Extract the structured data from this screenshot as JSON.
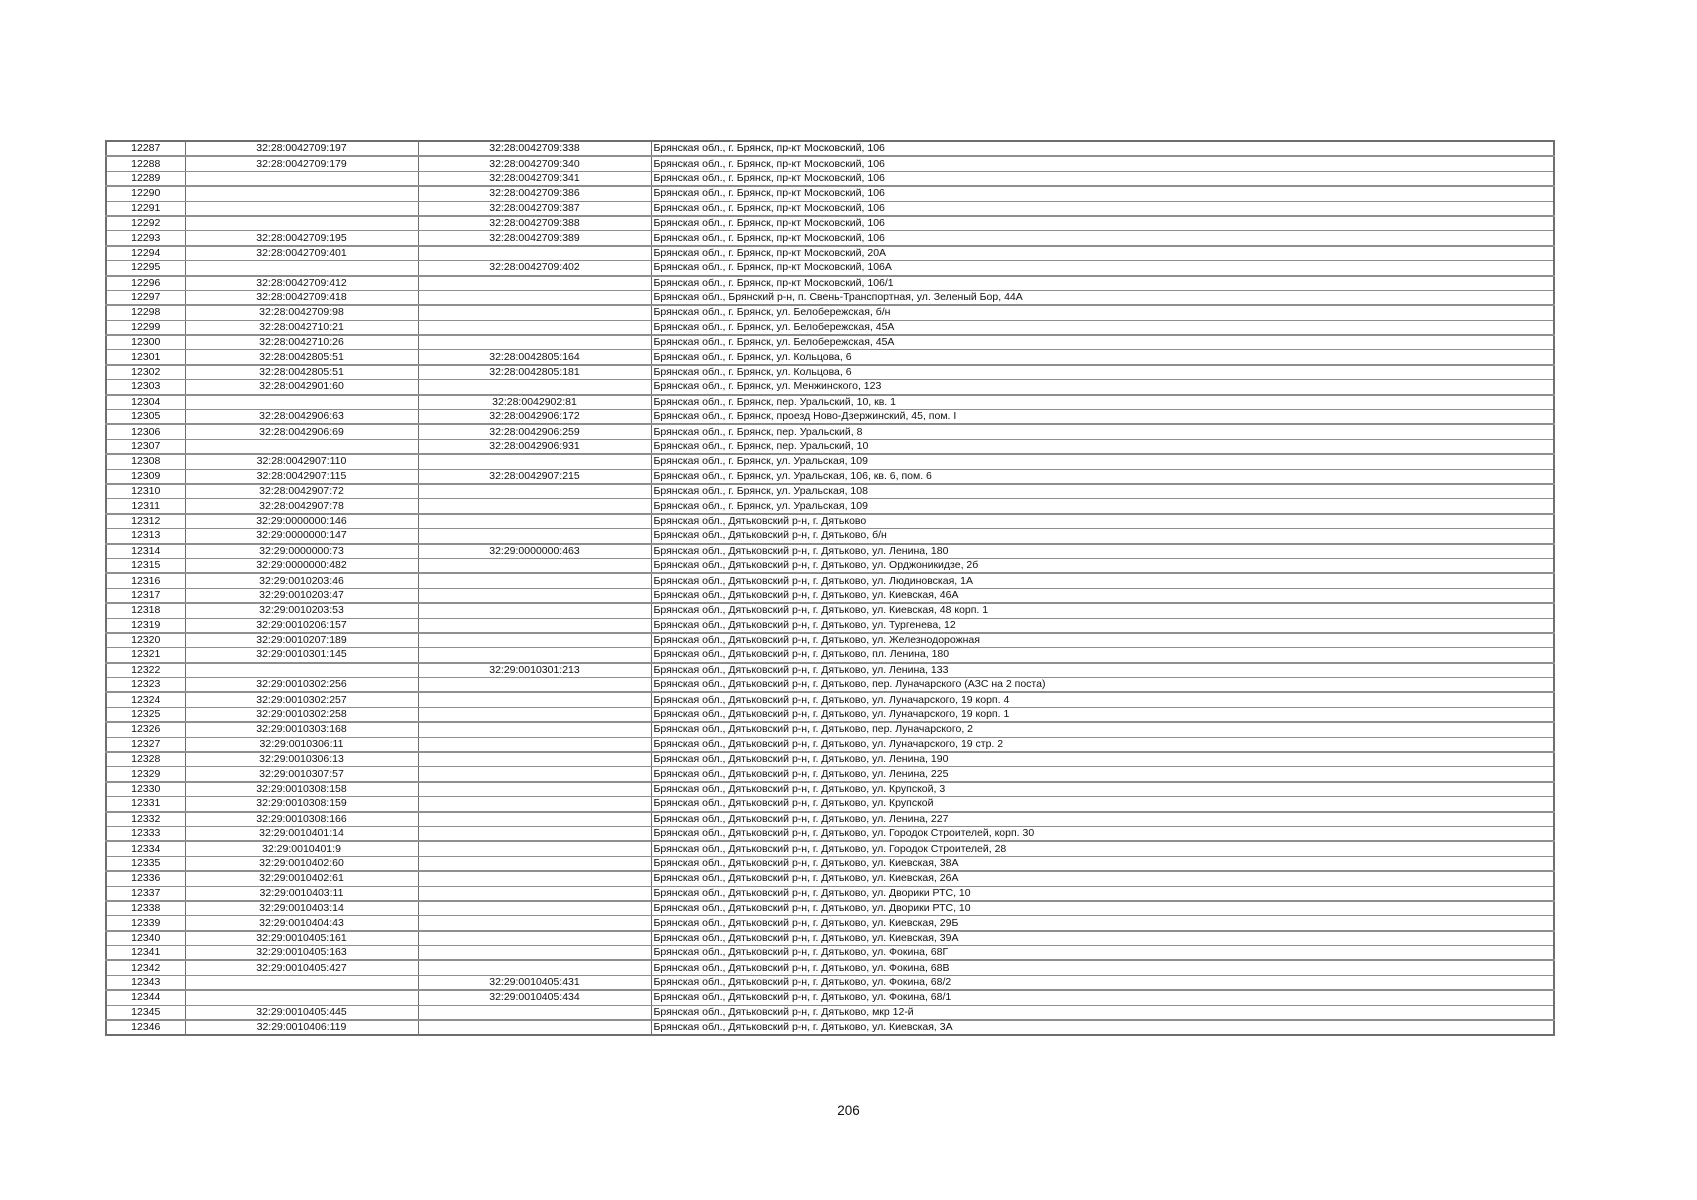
{
  "page": {
    "number": "206"
  },
  "colors": {
    "border": "#8f8f8f",
    "border_dark": "#6e6e6e",
    "text": "#111111",
    "background": "#ffffff"
  },
  "table": {
    "columns": [
      "row_number",
      "cadastral_number_1",
      "cadastral_number_2",
      "address"
    ],
    "rows": [
      [
        "12287",
        "32:28:0042709:197",
        "32:28:0042709:338",
        "Брянская обл., г. Брянск, пр-кт Московский, 106"
      ],
      [
        "12288",
        "32:28:0042709:179",
        "32:28:0042709:340",
        "Брянская обл., г. Брянск, пр-кт Московский, 106"
      ],
      [
        "12289",
        "",
        "32:28:0042709:341",
        "Брянская обл., г. Брянск, пр-кт Московский, 106"
      ],
      [
        "12290",
        "",
        "32:28:0042709:386",
        "Брянская обл., г. Брянск, пр-кт Московский, 106"
      ],
      [
        "12291",
        "",
        "32:28:0042709:387",
        "Брянская обл., г. Брянск, пр-кт Московский, 106"
      ],
      [
        "12292",
        "",
        "32:28:0042709:388",
        "Брянская обл., г. Брянск, пр-кт Московский, 106"
      ],
      [
        "12293",
        "32:28:0042709:195",
        "32:28:0042709:389",
        "Брянская обл., г. Брянск, пр-кт Московский, 106"
      ],
      [
        "12294",
        "32:28:0042709:401",
        "",
        "Брянская обл., г. Брянск, пр-кт Московский, 20А"
      ],
      [
        "12295",
        "",
        "32:28:0042709:402",
        "Брянская обл., г. Брянск, пр-кт Московский, 106А"
      ],
      [
        "12296",
        "32:28:0042709:412",
        "",
        "Брянская обл., г. Брянск, пр-кт Московский, 106/1"
      ],
      [
        "12297",
        "32:28:0042709:418",
        "",
        "Брянская обл., Брянский р-н, п. Свень-Транспортная, ул. Зеленый Бор, 44А"
      ],
      [
        "12298",
        "32:28:0042709:98",
        "",
        "Брянская обл., г. Брянск, ул. Белобережская, б/н"
      ],
      [
        "12299",
        "32:28:0042710:21",
        "",
        "Брянская обл., г. Брянск, ул. Белобережская, 45А"
      ],
      [
        "12300",
        "32:28:0042710:26",
        "",
        "Брянская обл., г. Брянск, ул. Белобережская, 45А"
      ],
      [
        "12301",
        "32:28:0042805:51",
        "32:28:0042805:164",
        "Брянская обл., г. Брянск, ул. Кольцова, 6"
      ],
      [
        "12302",
        "32:28:0042805:51",
        "32:28:0042805:181",
        "Брянская обл., г. Брянск, ул. Кольцова, 6"
      ],
      [
        "12303",
        "32:28:0042901:60",
        "",
        "Брянская обл., г. Брянск, ул. Менжинского, 123"
      ],
      [
        "12304",
        "",
        "32:28:0042902:81",
        "Брянская обл., г. Брянск, пер. Уральский, 10, кв. 1"
      ],
      [
        "12305",
        "32:28:0042906:63",
        "32:28:0042906:172",
        "Брянская обл., г. Брянск, проезд Ново-Дзержинский, 45, пом. I"
      ],
      [
        "12306",
        "32:28:0042906:69",
        "32:28:0042906:259",
        "Брянская обл., г. Брянск, пер. Уральский, 8"
      ],
      [
        "12307",
        "",
        "32:28:0042906:931",
        "Брянская обл., г. Брянск, пер. Уральский, 10"
      ],
      [
        "12308",
        "32:28:0042907:110",
        "",
        "Брянская обл., г. Брянск, ул. Уральская, 109"
      ],
      [
        "12309",
        "32:28:0042907:115",
        "32:28:0042907:215",
        "Брянская обл., г. Брянск, ул. Уральская, 106, кв. 6, пом. 6"
      ],
      [
        "12310",
        "32:28:0042907:72",
        "",
        "Брянская обл., г. Брянск, ул. Уральская, 108"
      ],
      [
        "12311",
        "32:28:0042907:78",
        "",
        "Брянская обл., г. Брянск, ул. Уральская, 109"
      ],
      [
        "12312",
        "32:29:0000000:146",
        "",
        "Брянская обл., Дятьковский р-н, г. Дятьково"
      ],
      [
        "12313",
        "32:29:0000000:147",
        "",
        "Брянская обл., Дятьковский р-н, г. Дятьково, б/н"
      ],
      [
        "12314",
        "32:29:0000000:73",
        "32:29:0000000:463",
        "Брянская обл., Дятьковский р-н, г. Дятьково, ул. Ленина, 180"
      ],
      [
        "12315",
        "32:29:0000000:482",
        "",
        "Брянская обл., Дятьковский р-н, г. Дятьково, ул. Орджоникидзе, 2б"
      ],
      [
        "12316",
        "32:29:0010203:46",
        "",
        "Брянская обл., Дятьковский р-н, г. Дятьково, ул. Людиновская, 1А"
      ],
      [
        "12317",
        "32:29:0010203:47",
        "",
        "Брянская обл., Дятьковский р-н, г. Дятьково, ул. Киевская, 46А"
      ],
      [
        "12318",
        "32:29:0010203:53",
        "",
        "Брянская обл., Дятьковский р-н, г. Дятьково, ул. Киевская, 48 корп. 1"
      ],
      [
        "12319",
        "32:29:0010206:157",
        "",
        "Брянская обл., Дятьковский р-н, г. Дятьково, ул. Тургенева, 12"
      ],
      [
        "12320",
        "32:29:0010207:189",
        "",
        "Брянская обл., Дятьковский р-н, г. Дятьково, ул. Железнодорожная"
      ],
      [
        "12321",
        "32:29:0010301:145",
        "",
        "Брянская обл., Дятьковский р-н, г. Дятьково, пл. Ленина, 180"
      ],
      [
        "12322",
        "",
        "32:29:0010301:213",
        "Брянская обл., Дятьковский р-н, г. Дятьково, ул. Ленина, 133"
      ],
      [
        "12323",
        "32:29:0010302:256",
        "",
        "Брянская обл., Дятьковский р-н, г. Дятьково, пер. Луначарского (АЗС на 2 поста)"
      ],
      [
        "12324",
        "32:29:0010302:257",
        "",
        "Брянская обл., Дятьковский р-н, г. Дятьково, ул. Луначарского, 19 корп. 4"
      ],
      [
        "12325",
        "32:29:0010302:258",
        "",
        "Брянская обл., Дятьковский р-н, г. Дятьково, ул. Луначарского, 19 корп. 1"
      ],
      [
        "12326",
        "32:29:0010303:168",
        "",
        "Брянская обл., Дятьковский р-н, г. Дятьково, пер. Луначарского, 2"
      ],
      [
        "12327",
        "32:29:0010306:11",
        "",
        "Брянская обл., Дятьковский р-н, г. Дятьково, ул. Луначарского, 19 стр. 2"
      ],
      [
        "12328",
        "32:29:0010306:13",
        "",
        "Брянская обл., Дятьковский р-н, г. Дятьково, ул. Ленина, 190"
      ],
      [
        "12329",
        "32:29:0010307:57",
        "",
        "Брянская обл., Дятьковский р-н, г. Дятьково, ул. Ленина, 225"
      ],
      [
        "12330",
        "32:29:0010308:158",
        "",
        "Брянская обл., Дятьковский р-н, г. Дятьково, ул. Крупской, 3"
      ],
      [
        "12331",
        "32:29:0010308:159",
        "",
        "Брянская обл., Дятьковский р-н, г. Дятьково, ул. Крупской"
      ],
      [
        "12332",
        "32:29:0010308:166",
        "",
        "Брянская обл., Дятьковский р-н, г. Дятьково, ул. Ленина, 227"
      ],
      [
        "12333",
        "32:29:0010401:14",
        "",
        "Брянская обл., Дятьковский р-н, г. Дятьково, ул. Городок Строителей, корп. 30"
      ],
      [
        "12334",
        "32:29:0010401:9",
        "",
        "Брянская обл., Дятьковский р-н, г. Дятьково, ул. Городок Строителей, 28"
      ],
      [
        "12335",
        "32:29:0010402:60",
        "",
        "Брянская обл., Дятьковский р-н, г. Дятьково, ул. Киевская, 38А"
      ],
      [
        "12336",
        "32:29:0010402:61",
        "",
        "Брянская обл., Дятьковский р-н, г. Дятьково, ул. Киевская, 26А"
      ],
      [
        "12337",
        "32:29:0010403:11",
        "",
        "Брянская обл., Дятьковский р-н, г. Дятьково, ул. Дворики РТС, 10"
      ],
      [
        "12338",
        "32:29:0010403:14",
        "",
        "Брянская обл., Дятьковский р-н, г. Дятьково, ул. Дворики РТС, 10"
      ],
      [
        "12339",
        "32:29:0010404:43",
        "",
        "Брянская обл., Дятьковский р-н, г. Дятьково, ул. Киевская, 29Б"
      ],
      [
        "12340",
        "32:29:0010405:161",
        "",
        "Брянская обл., Дятьковский р-н, г. Дятьково, ул. Киевская, 39А"
      ],
      [
        "12341",
        "32:29:0010405:163",
        "",
        "Брянская обл., Дятьковский р-н, г. Дятьково, ул. Фокина, 68Г"
      ],
      [
        "12342",
        "32:29:0010405:427",
        "",
        "Брянская обл., Дятьковский р-н, г. Дятьково, ул. Фокина, 68В"
      ],
      [
        "12343",
        "",
        "32:29:0010405:431",
        "Брянская обл., Дятьковский р-н, г. Дятьково, ул. Фокина, 68/2"
      ],
      [
        "12344",
        "",
        "32:29:0010405:434",
        "Брянская обл., Дятьковский р-н, г. Дятьково, ул. Фокина, 68/1"
      ],
      [
        "12345",
        "32:29:0010405:445",
        "",
        "Брянская обл., Дятьковский р-н, г. Дятьково, мкр 12-й"
      ],
      [
        "12346",
        "32:29:0010406:119",
        "",
        "Брянская обл., Дятьковский р-н, г. Дятьково, ул. Киевская, 3А"
      ]
    ]
  }
}
